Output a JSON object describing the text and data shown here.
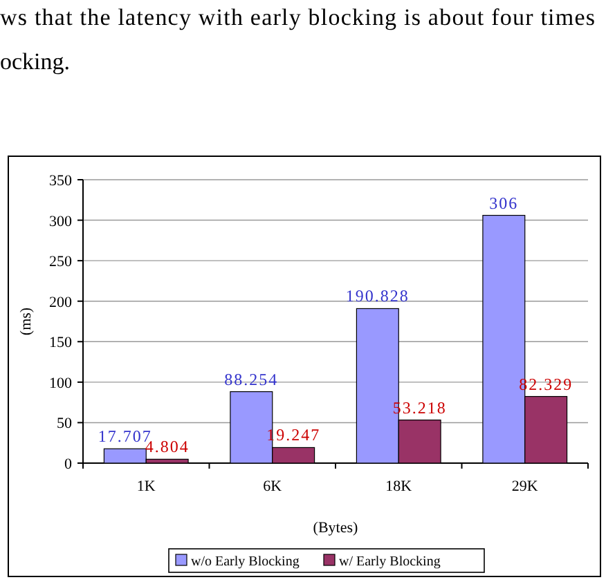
{
  "chart_data": {
    "type": "bar",
    "xlabel": "(Bytes)",
    "ylabel": "(ms)",
    "categories": [
      "1K",
      "6K",
      "18K",
      "29K"
    ],
    "series": [
      {
        "name": "w/o Early Blocking",
        "color": "#9999ff",
        "values": [
          17.707,
          88.254,
          190.828,
          306
        ]
      },
      {
        "name": "w/ Early Blocking",
        "color": "#993366",
        "values": [
          4.804,
          19.247,
          53.218,
          82.329
        ]
      }
    ],
    "ylim": [
      0,
      350
    ],
    "yticks": [
      0,
      50,
      100,
      150,
      200,
      250,
      300,
      350
    ],
    "grid": "y",
    "legend": "bottom",
    "data_labels": true,
    "annotations": [
      "ws that the latency with early blocking is about four times",
      "ocking."
    ]
  }
}
